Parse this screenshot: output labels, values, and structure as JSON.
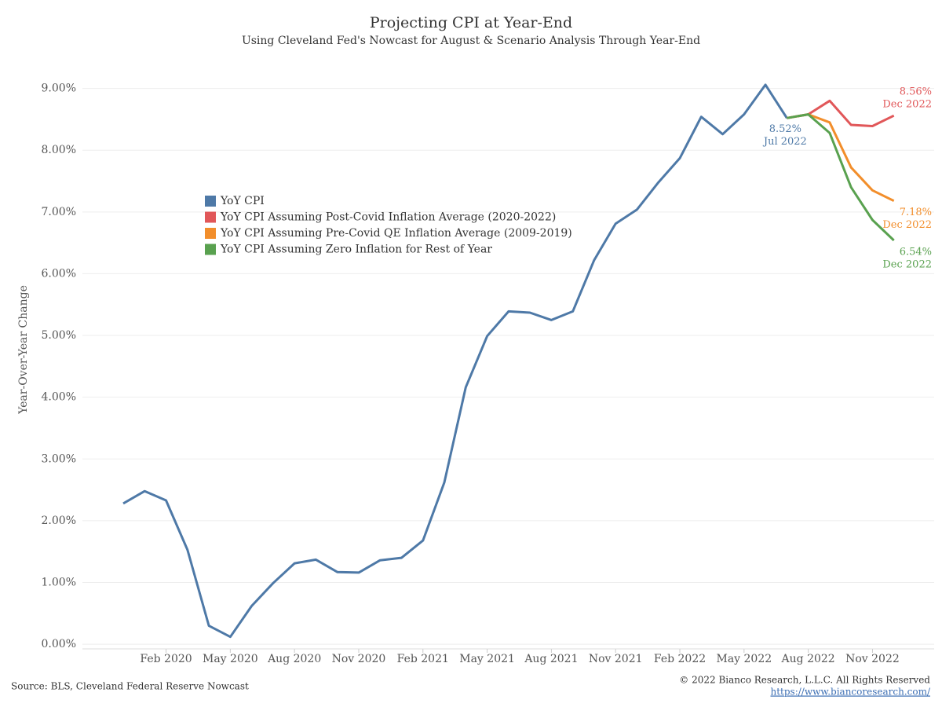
{
  "chart_data": {
    "type": "line",
    "title": "Projecting CPI at Year-End",
    "subtitle": "Using Cleveland Fed's Nowcast for August & Scenario Analysis Through Year-End",
    "y_label": "Year-Over-Year Change",
    "source": "Source: BLS, Cleveland Federal Reserve Nowcast",
    "copyright": "© 2022 Bianco Research, L.L.C. All Rights Reserved",
    "url": "https://www.biancoresearch.com/",
    "categories": [
      null,
      null,
      "Feb 2020",
      null,
      null,
      "May 2020",
      null,
      null,
      "Aug 2020",
      null,
      null,
      "Nov 2020",
      null,
      null,
      "Feb 2021",
      null,
      null,
      "May 2021",
      null,
      null,
      "Aug 2021",
      null,
      null,
      "Nov 2021",
      null,
      null,
      "Feb 2022",
      null,
      null,
      "May 2022",
      null,
      null,
      "Aug 2022",
      null,
      null,
      "Nov 2022",
      null
    ],
    "ylim": [
      -0.1,
      9.3
    ],
    "yticks": [
      {
        "value": 0,
        "label": "0.00%"
      },
      {
        "value": 1,
        "label": "1.00%"
      },
      {
        "value": 2,
        "label": "2.00%"
      },
      {
        "value": 3,
        "label": "3.00%"
      },
      {
        "value": 4,
        "label": "4.00%"
      },
      {
        "value": 5,
        "label": "5.00%"
      },
      {
        "value": 6,
        "label": "6.00%"
      },
      {
        "value": 7,
        "label": "7.00%"
      },
      {
        "value": 8,
        "label": "8.00%"
      },
      {
        "value": 9,
        "label": "9.00%"
      }
    ],
    "grid": true,
    "legend": "upper left",
    "series": [
      {
        "name": "YoY CPI",
        "color": "#4e79a7",
        "values": [
          2.28,
          2.48,
          2.33,
          1.53,
          0.3,
          0.12,
          0.62,
          0.99,
          1.31,
          1.37,
          1.17,
          1.16,
          1.36,
          1.4,
          1.68,
          2.62,
          4.16,
          4.99,
          5.39,
          5.37,
          5.25,
          5.39,
          6.22,
          6.81,
          7.04,
          7.48,
          7.87,
          8.54,
          8.26,
          8.58,
          9.06,
          8.52,
          null,
          null,
          null,
          null,
          null
        ],
        "value_labels": [
          null,
          null,
          null,
          null,
          null,
          null,
          null,
          null,
          null,
          null,
          null,
          null,
          null,
          null,
          null,
          null,
          null,
          null,
          null,
          null,
          null,
          null,
          null,
          null,
          null,
          null,
          null,
          null,
          null,
          null,
          null,
          "8.52%",
          null,
          null,
          null,
          null,
          null
        ],
        "end_label_date": "Jul 2022"
      },
      {
        "name": "YoY CPI Assuming Post-Covid Inflation Average (2020-2022)",
        "color": "#e15759",
        "values": [
          null,
          null,
          null,
          null,
          null,
          null,
          null,
          null,
          null,
          null,
          null,
          null,
          null,
          null,
          null,
          null,
          null,
          null,
          null,
          null,
          null,
          null,
          null,
          null,
          null,
          null,
          null,
          null,
          null,
          null,
          null,
          8.52,
          8.58,
          8.8,
          8.41,
          8.39,
          8.56
        ],
        "value_labels": [
          null,
          null,
          null,
          null,
          null,
          null,
          null,
          null,
          null,
          null,
          null,
          null,
          null,
          null,
          null,
          null,
          null,
          null,
          null,
          null,
          null,
          null,
          null,
          null,
          null,
          null,
          null,
          null,
          null,
          null,
          null,
          null,
          null,
          null,
          null,
          null,
          "8.56%"
        ],
        "end_label_date": "Dec 2022"
      },
      {
        "name": "YoY CPI Assuming Pre-Covid QE Inflation Average (2009-2019)",
        "color": "#f28e2b",
        "values": [
          null,
          null,
          null,
          null,
          null,
          null,
          null,
          null,
          null,
          null,
          null,
          null,
          null,
          null,
          null,
          null,
          null,
          null,
          null,
          null,
          null,
          null,
          null,
          null,
          null,
          null,
          null,
          null,
          null,
          null,
          null,
          8.52,
          8.58,
          8.45,
          7.72,
          7.35,
          7.18
        ],
        "value_labels": [
          null,
          null,
          null,
          null,
          null,
          null,
          null,
          null,
          null,
          null,
          null,
          null,
          null,
          null,
          null,
          null,
          null,
          null,
          null,
          null,
          null,
          null,
          null,
          null,
          null,
          null,
          null,
          null,
          null,
          null,
          null,
          null,
          null,
          null,
          null,
          null,
          "7.18%"
        ],
        "end_label_date": "Dec 2022"
      },
      {
        "name": "YoY CPI Assuming Zero Inflation for Rest of Year",
        "color": "#59a14f",
        "values": [
          null,
          null,
          null,
          null,
          null,
          null,
          null,
          null,
          null,
          null,
          null,
          null,
          null,
          null,
          null,
          null,
          null,
          null,
          null,
          null,
          null,
          null,
          null,
          null,
          null,
          null,
          null,
          null,
          null,
          null,
          null,
          8.52,
          8.58,
          8.28,
          7.4,
          6.87,
          6.54
        ],
        "value_labels": [
          null,
          null,
          null,
          null,
          null,
          null,
          null,
          null,
          null,
          null,
          null,
          null,
          null,
          null,
          null,
          null,
          null,
          null,
          null,
          null,
          null,
          null,
          null,
          null,
          null,
          null,
          null,
          null,
          null,
          null,
          null,
          null,
          null,
          null,
          null,
          null,
          "6.54%"
        ],
        "end_label_date": "Dec 2022"
      }
    ]
  }
}
